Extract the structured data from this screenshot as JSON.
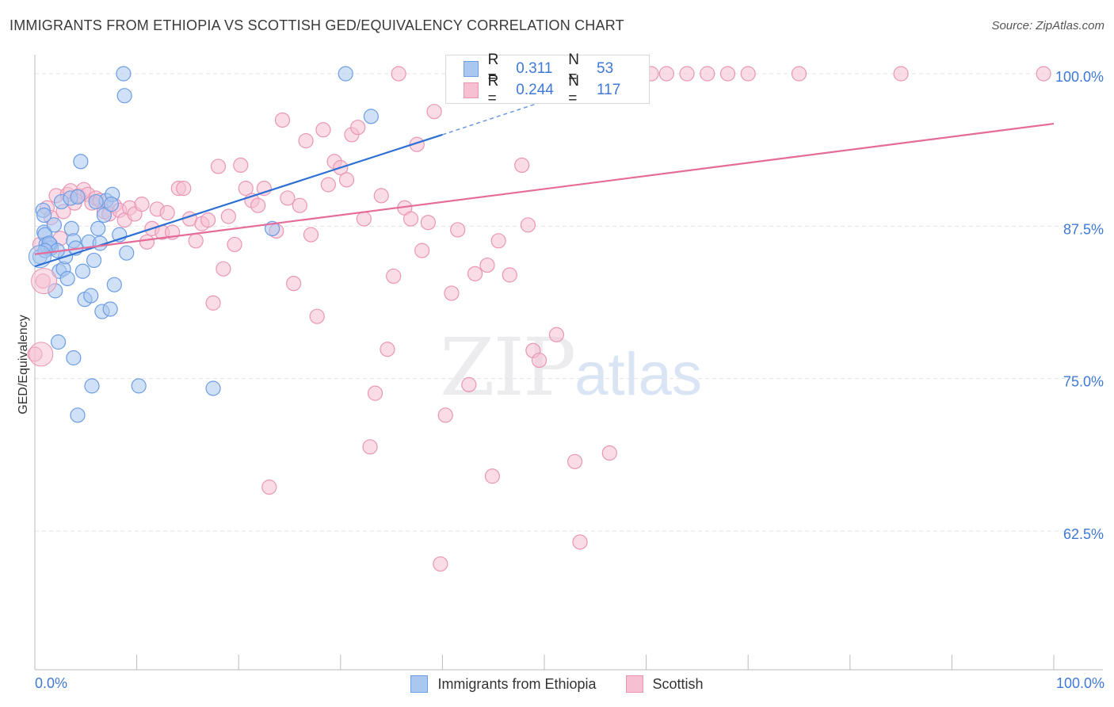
{
  "title": "IMMIGRANTS FROM ETHIOPIA VS SCOTTISH GED/EQUIVALENCY CORRELATION CHART",
  "source": "Source: ZipAtlas.com",
  "watermark": {
    "a": "ZIP",
    "b": "atlas"
  },
  "legend_top": {
    "r_label": "R =",
    "n_label": "N =",
    "rows": [
      {
        "r": "0.311",
        "n": "53"
      },
      {
        "r": "0.244",
        "n": "117"
      }
    ]
  },
  "colors": {
    "blue_fill": "#aac7f0",
    "blue_stroke": "#6d9de3",
    "blue_line": "#2d6fd4",
    "pink_fill": "#f6c0d2",
    "pink_stroke": "#e996b5",
    "pink_line": "#e56b98",
    "tick_text": "#3f78d6",
    "grid": "#e3e3e3"
  },
  "chart_data": {
    "type": "scatter",
    "title": "IMMIGRANTS FROM ETHIOPIA VS SCOTTISH GED/EQUIVALENCY CORRELATION CHART",
    "xlabel": "",
    "ylabel": "GED/Equivalency",
    "xlim": [
      0,
      100
    ],
    "ylim": [
      50,
      101
    ],
    "x_tick_labels": [
      "0.0%",
      "100.0%"
    ],
    "y_ticks": [
      62.5,
      75.0,
      87.5,
      100.0
    ],
    "y_tick_labels": [
      "62.5%",
      "75.0%",
      "87.5%",
      "100.0%"
    ],
    "grid": true,
    "legend_position": "top-center",
    "series": [
      {
        "name": "Immigrants from Ethiopia",
        "trend": {
          "x0": 0,
          "y0": 84.2,
          "x1": 40,
          "y1": 95.0,
          "dashed_to_x": 52,
          "dashed_to_y": 98.3
        },
        "points": [
          [
            0.5,
            85.0
          ],
          [
            0.8,
            88.8
          ],
          [
            0.9,
            87.0
          ],
          [
            1.0,
            86.8
          ],
          [
            1.1,
            86.0
          ],
          [
            1.3,
            85.7
          ],
          [
            1.6,
            85.7
          ],
          [
            1.9,
            87.6
          ],
          [
            2.0,
            82.2
          ],
          [
            2.4,
            83.8
          ],
          [
            2.6,
            89.5
          ],
          [
            2.8,
            84.0
          ],
          [
            3.0,
            85.0
          ],
          [
            3.2,
            83.2
          ],
          [
            3.5,
            89.8
          ],
          [
            3.6,
            87.3
          ],
          [
            3.8,
            86.3
          ],
          [
            4.0,
            85.7
          ],
          [
            4.2,
            89.9
          ],
          [
            4.5,
            92.8
          ],
          [
            4.7,
            83.8
          ],
          [
            4.9,
            81.5
          ],
          [
            5.3,
            86.2
          ],
          [
            5.5,
            81.8
          ],
          [
            5.8,
            84.7
          ],
          [
            6.2,
            87.3
          ],
          [
            6.4,
            86.1
          ],
          [
            6.6,
            80.5
          ],
          [
            6.8,
            88.4
          ],
          [
            7.0,
            89.6
          ],
          [
            7.4,
            80.7
          ],
          [
            7.6,
            90.1
          ],
          [
            7.8,
            82.7
          ],
          [
            8.3,
            86.8
          ],
          [
            8.7,
            100
          ],
          [
            8.8,
            98.2
          ],
          [
            9.0,
            85.3
          ],
          [
            2.3,
            78.0
          ],
          [
            3.8,
            76.7
          ],
          [
            5.6,
            74.4
          ],
          [
            10.2,
            74.4
          ],
          [
            17.5,
            74.2
          ],
          [
            4.2,
            72.0
          ],
          [
            23.3,
            87.3
          ],
          [
            30.5,
            100
          ],
          [
            33.0,
            96.5
          ],
          [
            1.5,
            86.0
          ],
          [
            0.9,
            88.4
          ],
          [
            1.4,
            86.1
          ],
          [
            6.0,
            89.5
          ],
          [
            2.2,
            85.5
          ],
          [
            1.0,
            85.5
          ],
          [
            7.5,
            89.3
          ]
        ]
      },
      {
        "name": "Scottish",
        "trend": {
          "x0": 0,
          "y0": 85.2,
          "x1": 100,
          "y1": 95.9
        },
        "points": [
          [
            0.0,
            77.0
          ],
          [
            0.5,
            86.0
          ],
          [
            0.8,
            83.0
          ],
          [
            1.2,
            89.0
          ],
          [
            1.6,
            88.2
          ],
          [
            2.1,
            90.0
          ],
          [
            2.5,
            86.5
          ],
          [
            2.8,
            88.7
          ],
          [
            3.2,
            90.1
          ],
          [
            3.5,
            90.4
          ],
          [
            3.9,
            89.4
          ],
          [
            4.3,
            90.0
          ],
          [
            4.8,
            90.5
          ],
          [
            5.2,
            90.1
          ],
          [
            5.6,
            89.4
          ],
          [
            6.0,
            89.8
          ],
          [
            6.4,
            89.6
          ],
          [
            6.8,
            88.7
          ],
          [
            7.3,
            88.5
          ],
          [
            7.8,
            89.2
          ],
          [
            8.3,
            88.8
          ],
          [
            8.8,
            88.0
          ],
          [
            9.3,
            89.0
          ],
          [
            9.8,
            88.5
          ],
          [
            10.5,
            89.3
          ],
          [
            11.0,
            86.2
          ],
          [
            11.5,
            87.3
          ],
          [
            12.0,
            88.9
          ],
          [
            12.5,
            87.0
          ],
          [
            13.0,
            88.6
          ],
          [
            13.5,
            87.0
          ],
          [
            14.1,
            90.6
          ],
          [
            14.6,
            90.6
          ],
          [
            15.2,
            88.1
          ],
          [
            15.8,
            86.3
          ],
          [
            16.4,
            87.7
          ],
          [
            17.0,
            88.0
          ],
          [
            17.5,
            81.2
          ],
          [
            18.0,
            92.4
          ],
          [
            18.5,
            84.0
          ],
          [
            19.0,
            88.3
          ],
          [
            19.6,
            86.0
          ],
          [
            20.2,
            92.5
          ],
          [
            20.7,
            90.6
          ],
          [
            21.3,
            89.6
          ],
          [
            21.9,
            89.2
          ],
          [
            22.5,
            90.6
          ],
          [
            23.0,
            66.1
          ],
          [
            23.7,
            87.1
          ],
          [
            24.3,
            96.2
          ],
          [
            24.8,
            89.8
          ],
          [
            25.4,
            82.8
          ],
          [
            26.0,
            89.2
          ],
          [
            26.6,
            94.5
          ],
          [
            27.1,
            86.8
          ],
          [
            27.7,
            80.1
          ],
          [
            28.3,
            95.4
          ],
          [
            28.8,
            90.9
          ],
          [
            29.4,
            92.8
          ],
          [
            30.0,
            92.3
          ],
          [
            30.6,
            91.3
          ],
          [
            31.1,
            95.0
          ],
          [
            31.7,
            95.6
          ],
          [
            32.3,
            88.1
          ],
          [
            32.9,
            69.4
          ],
          [
            33.4,
            73.8
          ],
          [
            34.0,
            90.0
          ],
          [
            34.6,
            77.4
          ],
          [
            35.2,
            83.4
          ],
          [
            35.7,
            100
          ],
          [
            36.3,
            89.0
          ],
          [
            36.9,
            88.1
          ],
          [
            37.5,
            94.2
          ],
          [
            38.0,
            85.5
          ],
          [
            38.6,
            87.8
          ],
          [
            39.2,
            96.9
          ],
          [
            39.8,
            59.8
          ],
          [
            40.3,
            72.0
          ],
          [
            40.9,
            82.0
          ],
          [
            41.5,
            87.2
          ],
          [
            42.1,
            100
          ],
          [
            42.6,
            74.5
          ],
          [
            43.2,
            83.6
          ],
          [
            43.8,
            100
          ],
          [
            44.4,
            84.3
          ],
          [
            44.9,
            67.0
          ],
          [
            45.5,
            86.3
          ],
          [
            46.1,
            100
          ],
          [
            46.6,
            83.5
          ],
          [
            47.2,
            100
          ],
          [
            47.8,
            92.5
          ],
          [
            48.4,
            87.6
          ],
          [
            48.9,
            77.3
          ],
          [
            49.5,
            76.5
          ],
          [
            50.1,
            100
          ],
          [
            50.7,
            100
          ],
          [
            51.2,
            78.6
          ],
          [
            51.8,
            100
          ],
          [
            52.4,
            100
          ],
          [
            53.0,
            68.2
          ],
          [
            53.5,
            61.6
          ],
          [
            54.1,
            100
          ],
          [
            54.7,
            100
          ],
          [
            55.3,
            100
          ],
          [
            55.8,
            100
          ],
          [
            56.4,
            68.9
          ],
          [
            57.0,
            100
          ],
          [
            58.0,
            100
          ],
          [
            60.5,
            100
          ],
          [
            62.0,
            100
          ],
          [
            64.0,
            100
          ],
          [
            66.0,
            100
          ],
          [
            68.0,
            100
          ],
          [
            70.0,
            100
          ],
          [
            75.0,
            100
          ],
          [
            85.0,
            100
          ],
          [
            99.0,
            100
          ]
        ]
      }
    ]
  },
  "legend_bottom": [
    {
      "label": "Immigrants from Ethiopia"
    },
    {
      "label": "Scottish"
    }
  ]
}
